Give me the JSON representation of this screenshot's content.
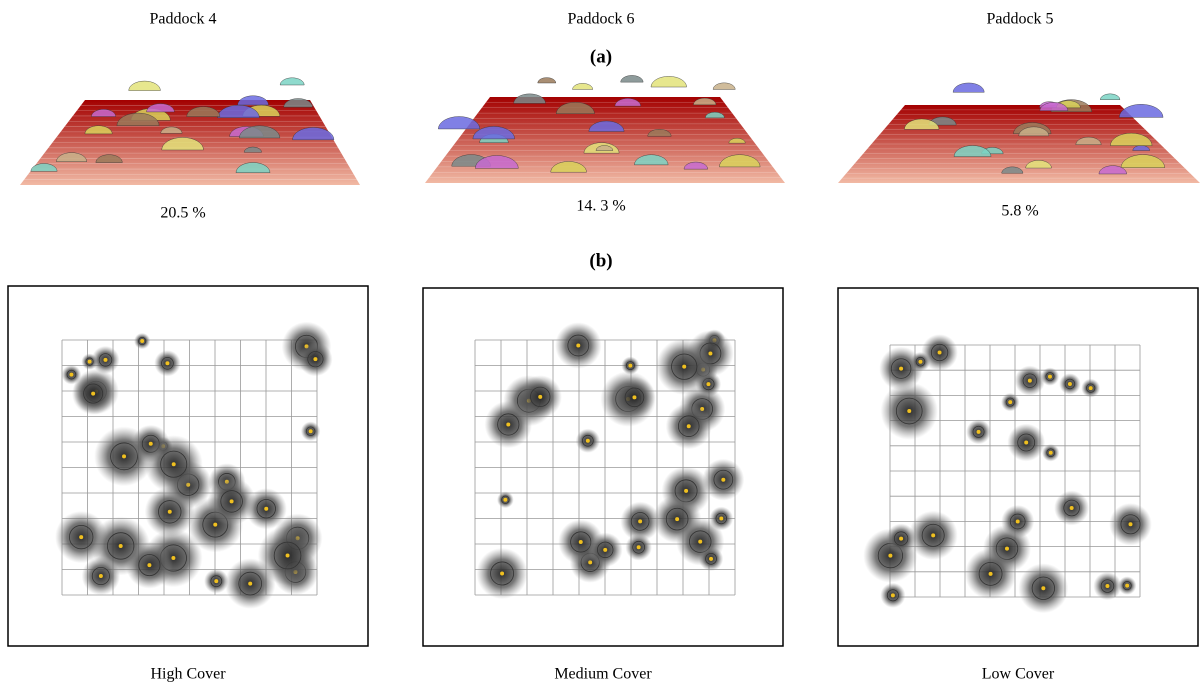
{
  "panel_a": {
    "label": "(a)",
    "paddocks": [
      {
        "name": "Paddock 4",
        "cover": "20.5 %"
      },
      {
        "name": "Paddock 6",
        "cover": "14. 3 %"
      },
      {
        "name": "Paddock 5",
        "cover": "5.8 %"
      }
    ]
  },
  "panel_b": {
    "label": "(b)",
    "maps": [
      "High Cover",
      "Medium Cover",
      "Low Cover"
    ]
  }
}
